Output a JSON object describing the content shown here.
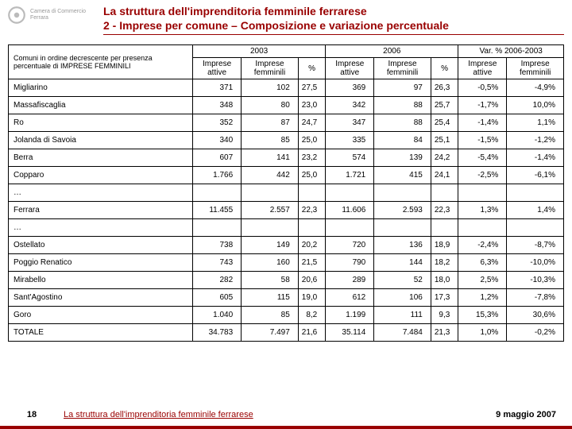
{
  "logo_text1": "Camera di Commercio",
  "logo_text2": "Ferrara",
  "title1": "La struttura dell'imprenditoria femminile ferrarese",
  "title2": "2 - Imprese per comune – Composizione e variazione percentuale",
  "desc": "Comuni in ordine decrescente per presenza percentuale di IMPRESE FEMMINILI",
  "h_2003": "2003",
  "h_2006": "2006",
  "h_var": "Var. % 2006-2003",
  "h_attive": "Imprese attive",
  "h_femm": "Imprese femminili",
  "h_pct": "%",
  "rows1": [
    {
      "n": "Migliarino",
      "a": "371",
      "f": "102",
      "p": "27,5",
      "a2": "369",
      "f2": "97",
      "p2": "26,3",
      "va": "-0,5%",
      "vf": "-4,9%"
    },
    {
      "n": "Massafiscaglia",
      "a": "348",
      "f": "80",
      "p": "23,0",
      "a2": "342",
      "f2": "88",
      "p2": "25,7",
      "va": "-1,7%",
      "vf": "10,0%"
    },
    {
      "n": "Ro",
      "a": "352",
      "f": "87",
      "p": "24,7",
      "a2": "347",
      "f2": "88",
      "p2": "25,4",
      "va": "-1,4%",
      "vf": "1,1%"
    },
    {
      "n": "Jolanda di Savoia",
      "a": "340",
      "f": "85",
      "p": "25,0",
      "a2": "335",
      "f2": "84",
      "p2": "25,1",
      "va": "-1,5%",
      "vf": "-1,2%"
    },
    {
      "n": "Berra",
      "a": "607",
      "f": "141",
      "p": "23,2",
      "a2": "574",
      "f2": "139",
      "p2": "24,2",
      "va": "-5,4%",
      "vf": "-1,4%"
    },
    {
      "n": "Copparo",
      "a": "1.766",
      "f": "442",
      "p": "25,0",
      "a2": "1.721",
      "f2": "415",
      "p2": "24,1",
      "va": "-2,5%",
      "vf": "-6,1%"
    }
  ],
  "rows2": [
    {
      "n": "Ferrara",
      "a": "11.455",
      "f": "2.557",
      "p": "22,3",
      "a2": "11.606",
      "f2": "2.593",
      "p2": "22,3",
      "va": "1,3%",
      "vf": "1,4%"
    }
  ],
  "rows3": [
    {
      "n": "Ostellato",
      "a": "738",
      "f": "149",
      "p": "20,2",
      "a2": "720",
      "f2": "136",
      "p2": "18,9",
      "va": "-2,4%",
      "vf": "-8,7%"
    },
    {
      "n": "Poggio Renatico",
      "a": "743",
      "f": "160",
      "p": "21,5",
      "a2": "790",
      "f2": "144",
      "p2": "18,2",
      "va": "6,3%",
      "vf": "-10,0%"
    },
    {
      "n": "Mirabello",
      "a": "282",
      "f": "58",
      "p": "20,6",
      "a2": "289",
      "f2": "52",
      "p2": "18,0",
      "va": "2,5%",
      "vf": "-10,3%"
    },
    {
      "n": "Sant'Agostino",
      "a": "605",
      "f": "115",
      "p": "19,0",
      "a2": "612",
      "f2": "106",
      "p2": "17,3",
      "va": "1,2%",
      "vf": "-7,8%"
    },
    {
      "n": "Goro",
      "a": "1.040",
      "f": "85",
      "p": "8,2",
      "a2": "1.199",
      "f2": "111",
      "p2": "9,3",
      "va": "15,3%",
      "vf": "30,6%"
    },
    {
      "n": "TOTALE",
      "a": "34.783",
      "f": "7.497",
      "p": "21,6",
      "a2": "35.114",
      "f2": "7.484",
      "p2": "21,3",
      "va": "1,0%",
      "vf": "-0,2%"
    }
  ],
  "ellipsis": "…",
  "page_num": "18",
  "footer_title": "La struttura dell'imprenditoria femminile ferrarese",
  "footer_date": "9 maggio 2007"
}
